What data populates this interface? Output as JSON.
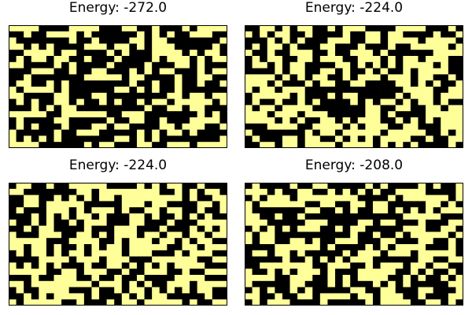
{
  "chart_data": [
    {
      "type": "heatmap",
      "title": "Energy: -272.0",
      "rows": [
        "11110000111100011001000101111",
        "00100111101000000101010011100",
        "10000000100100001101100000001",
        "11010100001110110101110000010",
        "00111101100001010001111010110",
        "01011011001000100001011101011",
        "11000010100001000010001101000",
        "00011100100110001010110001011",
        "00100000001111101100001001100",
        "01100101000000001001001001001",
        "10111101000000110101001000000",
        "11000011000110000000011011011",
        "01010011010010100101101111101",
        "00010101100000000010011011000",
        "11111001111110011100000001010",
        "01000011000001001100100011110",
        "01010001000110110000110111001",
        "10000010011100000101011010000",
        "10101010000000110101000000001",
        "11110000001011000110011101111"
      ]
    },
    {
      "type": "heatmap",
      "title": "Energy: -224.0",
      "rows": [
        "00110101100101110000111100010",
        "10101100100001001101100001001",
        "00010101000111001101111011110",
        "01011010001100010001001111101",
        "10010011100100111010000001111",
        "01011001101110011101011011100",
        "01101011000011010101011110100",
        "00001011001101001010010111100",
        "11110101011001011101110110010",
        "11101000101100110000110101001",
        "10110111000000000000011110011",
        "01111101000101100000101110111",
        "01001001010000101011010110100",
        "10110111100000001100110011011",
        "11101110111000001101000011111",
        "11110101001101011100101010111",
        "00011110011110101110011000111",
        "10000000101101111101111100101",
        "01000110110010101011110010011",
        "00110110111101111010101000010"
      ]
    },
    {
      "type": "heatmap",
      "title": "Energy: -224.0",
      "rows": [
        "01100100111110000101011001000",
        "11000000011011111111001010110",
        "00110010101011011111111010011",
        "00110111110000011101100001101",
        "01000111010111010011011001001",
        "00010101011010001101001010100",
        "10010100101110001100010001111",
        "00101100001000111000100010101",
        "10001110011010111011011011011",
        "11111000111100101110110101100",
        "11011010010101101111100110111",
        "01011010110111101110001011100",
        "00001111011101110001111110011",
        "10101010001001101010101111000",
        "11111001101110010011100100111",
        "00010011100100100100001111000",
        "11011111111011101010011101111",
        "01001111000100101101010101100",
        "00101011110100010101100000100",
        "10111110010001011011111010011"
      ]
    },
    {
      "type": "heatmap",
      "title": "Energy: -208.0",
      "rows": [
        "01000010011000001010000101001",
        "11101001100101010100111100001",
        "01011101111111100001011111101",
        "10111111001100110110000011010",
        "10000000110010100110101010111",
        "11001001000000000000011111000",
        "11100000111000011011000100011",
        "01010101110010110000011100110",
        "10110000000000100100101111101",
        "10110011010011100011000110010",
        "00001111110100001010111100010",
        "01101101000001011101110111110",
        "00000100101010111000000110011",
        "00111111100111001011101101100",
        "10010101110100011111001010010",
        "11110011100101011110010100101",
        "10000011000101000101010000011",
        "01010010100000110011000110001",
        "11001001101111011011100100011",
        "01011100001000001011110011010"
      ]
    }
  ]
}
